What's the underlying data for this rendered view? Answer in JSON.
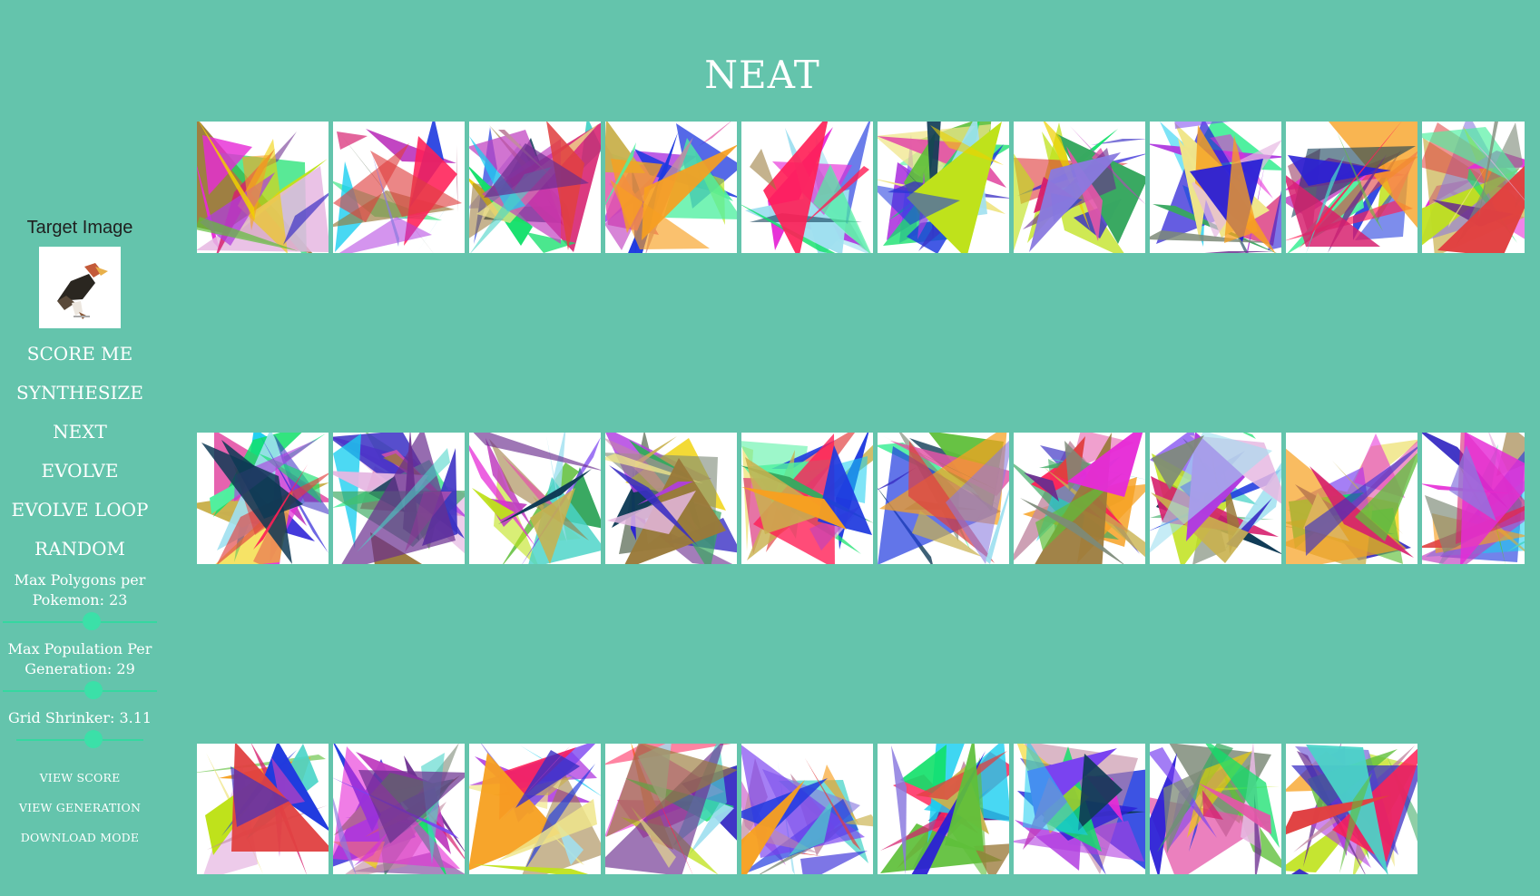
{
  "header": {
    "title": "NEAT"
  },
  "sidebar": {
    "target_label": "Target Image",
    "target_icon": "target-image",
    "buttons": {
      "score": "SCORE ME",
      "synthesize": "SYNTHESIZE",
      "next": "NEXT",
      "evolve": "EVOLVE",
      "evolve_loop": "EVOLVE LOOP",
      "random": "RANDOM"
    },
    "sliders": {
      "polygons_label": "Max Polygons per Pokemon: 23",
      "polygons_value": 23,
      "population_label": "Max Population Per Generation: 29",
      "population_value": 29,
      "grid_label": "Grid Shrinker: 3.11",
      "grid_value": 3.11
    },
    "links": {
      "view_score": "VIEW SCORE",
      "view_generation": "VIEW GENERATION",
      "download_mode": "DOWNLOAD MODE"
    }
  },
  "grid": {
    "rows": [
      10,
      10,
      9
    ],
    "tile_count": 29
  },
  "colors": {
    "background": "#64c4ac",
    "slider_accent": "#3be0a8",
    "text": "#ffffff"
  }
}
